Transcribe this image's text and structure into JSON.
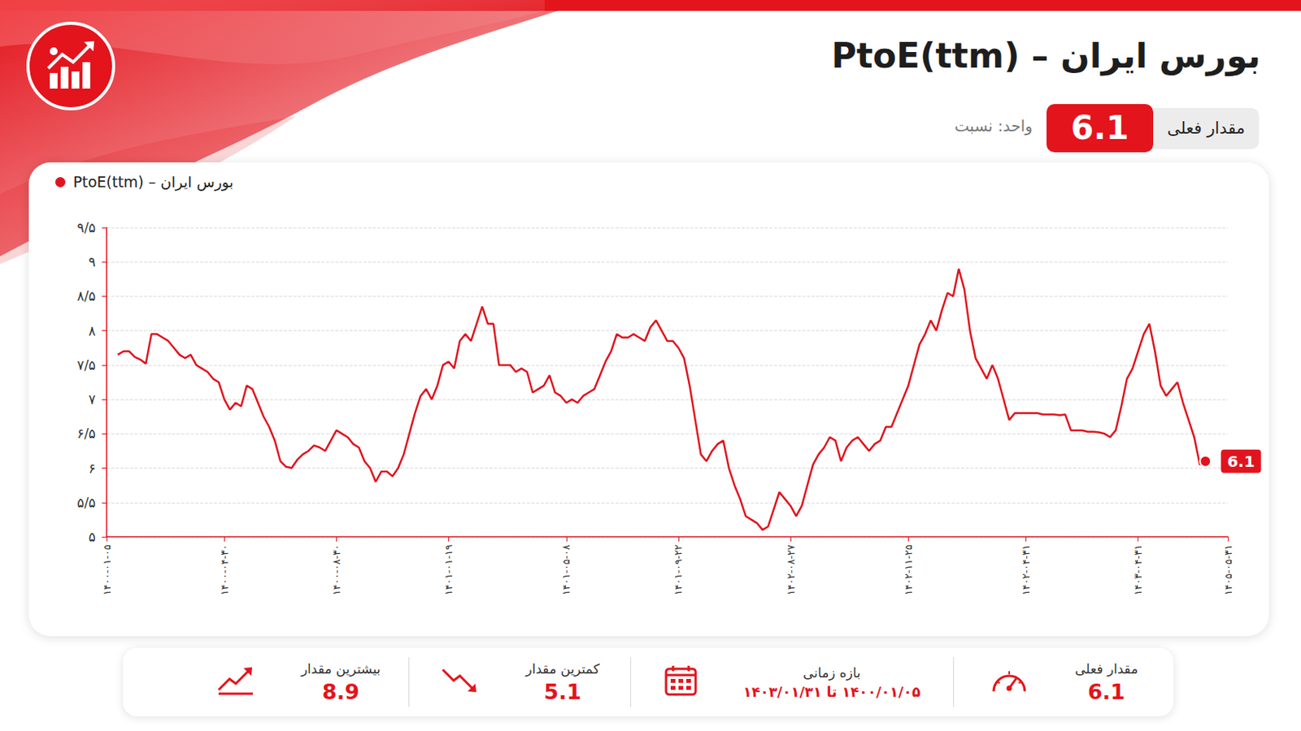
{
  "header": {
    "title": "بورس ایران – PtoE(ttm)",
    "current_label": "مقدار فعلی",
    "current_value": 6.1,
    "unit": "واحد: نسبت"
  },
  "stats": [
    {
      "label": "مقدار فعلی",
      "value": 6.1
    },
    {
      "label": "بازه زمانی",
      "value": "۱۴۰۰/۰۱/۰۵ تا ۱۴۰۳/۰۱/۳۱"
    },
    {
      "label": "کمترین مقدار",
      "value": 5.1
    },
    {
      "label": "بیشترین مقدار",
      "value": 8.9
    }
  ],
  "chart_data": {
    "type": "line",
    "legend": "top-left",
    "grid": true,
    "categories": [
      "۱۴۰۰-۰۱-۰۵",
      null,
      null,
      null,
      null,
      null,
      null,
      null,
      null,
      null,
      null,
      null,
      null,
      null,
      null,
      null,
      null,
      null,
      null,
      null,
      null,
      "۱۴۰۰-۰۴-۳۰",
      null,
      null,
      null,
      null,
      null,
      null,
      null,
      null,
      null,
      null,
      null,
      null,
      null,
      null,
      null,
      null,
      null,
      null,
      null,
      "۱۴۰۰-۰۸-۳۰",
      null,
      null,
      null,
      null,
      null,
      null,
      null,
      null,
      null,
      null,
      null,
      null,
      null,
      null,
      null,
      null,
      null,
      null,
      null,
      "۱۴۰۱-۰۱-۱۹",
      null,
      null,
      null,
      null,
      null,
      null,
      null,
      null,
      null,
      null,
      null,
      null,
      null,
      null,
      null,
      null,
      null,
      null,
      null,
      null,
      "۱۴۰۱-۰۵-۰۸",
      null,
      null,
      null,
      null,
      null,
      null,
      null,
      null,
      null,
      null,
      null,
      null,
      null,
      null,
      null,
      null,
      null,
      null,
      null,
      "۱۴۰۱-۰۹-۲۲",
      null,
      null,
      null,
      null,
      null,
      null,
      null,
      null,
      null,
      null,
      null,
      null,
      null,
      null,
      null,
      null,
      null,
      null,
      null,
      "۱۴۰۲-۰۸-۲۷",
      null,
      null,
      null,
      null,
      null,
      null,
      null,
      null,
      null,
      null,
      null,
      null,
      null,
      null,
      null,
      null,
      null,
      null,
      null,
      null,
      "۱۴۰۲-۱۱-۲۵",
      null,
      null,
      null,
      null,
      null,
      null,
      null,
      null,
      null,
      null,
      null,
      null,
      null,
      null,
      null,
      null,
      null,
      null,
      null,
      null,
      "۱۴۰۲-۰۴-۳۱",
      null,
      null,
      null,
      null,
      null,
      null,
      null,
      null,
      null,
      null,
      null,
      null,
      null,
      null,
      null,
      null,
      null,
      null,
      null,
      "۱۴۰۳-۰۴-۳۱",
      null,
      null,
      null,
      null,
      null,
      null,
      null,
      null,
      null,
      null,
      null,
      null,
      null,
      null,
      null,
      "۱۴۰۵-۰۵-۳۱"
    ],
    "series": [
      {
        "name": "بورس ایران – PtoE(ttm)",
        "color": "#e0141e",
        "values": [
          null,
          null,
          7.65,
          7.7,
          7.7,
          7.62,
          7.58,
          7.52,
          7.95,
          7.95,
          7.9,
          7.85,
          7.75,
          7.65,
          7.6,
          7.65,
          7.5,
          7.45,
          7.4,
          7.3,
          7.25,
          7.0,
          6.85,
          6.95,
          6.9,
          7.2,
          7.15,
          6.95,
          6.75,
          6.6,
          6.4,
          6.1,
          6.02,
          6.0,
          6.12,
          6.2,
          6.25,
          6.33,
          6.3,
          6.25,
          6.4,
          6.55,
          6.5,
          6.45,
          6.35,
          6.3,
          6.1,
          6.0,
          5.8,
          5.95,
          5.95,
          5.88,
          6.0,
          6.2,
          6.5,
          6.8,
          7.05,
          7.15,
          7.0,
          7.2,
          7.5,
          7.55,
          7.45,
          7.85,
          7.95,
          7.85,
          8.1,
          8.35,
          8.1,
          8.1,
          7.5,
          7.5,
          7.5,
          7.4,
          7.45,
          7.4,
          7.1,
          7.15,
          7.2,
          7.35,
          7.1,
          7.05,
          6.95,
          7.0,
          6.95,
          7.05,
          7.1,
          7.15,
          7.35,
          7.55,
          7.7,
          7.95,
          7.9,
          7.9,
          7.95,
          7.9,
          7.85,
          8.05,
          8.15,
          8.0,
          7.85,
          7.85,
          7.75,
          7.6,
          7.2,
          6.7,
          6.2,
          6.1,
          6.25,
          6.35,
          6.4,
          6.0,
          5.75,
          5.55,
          5.3,
          5.25,
          5.2,
          5.1,
          5.15,
          5.4,
          5.65,
          5.55,
          5.45,
          5.3,
          5.45,
          5.75,
          6.05,
          6.2,
          6.3,
          6.45,
          6.4,
          6.1,
          6.3,
          6.4,
          6.45,
          6.35,
          6.25,
          6.35,
          6.4,
          6.6,
          6.6,
          6.8,
          7.0,
          7.2,
          7.5,
          7.8,
          7.95,
          8.15,
          8.0,
          8.3,
          8.55,
          8.5,
          8.9,
          8.6,
          8.0,
          7.6,
          7.45,
          7.3,
          7.5,
          7.3,
          7.0,
          6.7,
          6.8,
          6.8,
          6.8,
          6.8,
          6.8,
          6.78,
          6.78,
          6.78,
          6.77,
          6.78,
          6.55,
          6.55,
          6.55,
          6.53,
          6.53,
          6.52,
          6.5,
          6.45,
          6.55,
          6.9,
          7.3,
          7.45,
          7.7,
          7.95,
          8.1,
          7.7,
          7.2,
          7.05,
          7.15,
          7.25,
          6.95,
          6.7,
          6.45,
          6.05,
          6.1,
          null,
          null,
          null,
          null
        ]
      }
    ],
    "ylim": [
      5,
      9.5
    ],
    "yticks": [
      {
        "value": 5,
        "label": "۵"
      },
      {
        "value": 5.5,
        "label": "۵/۵"
      },
      {
        "value": 6,
        "label": "۶"
      },
      {
        "value": 6.5,
        "label": "۶/۵"
      },
      {
        "value": 7,
        "label": "۷"
      },
      {
        "value": 7.5,
        "label": "۷/۵"
      },
      {
        "value": 8,
        "label": "۸"
      },
      {
        "value": 8.5,
        "label": "۸/۵"
      },
      {
        "value": 9,
        "label": "۹"
      },
      {
        "value": 9.5,
        "label": "۹/۵"
      }
    ]
  }
}
